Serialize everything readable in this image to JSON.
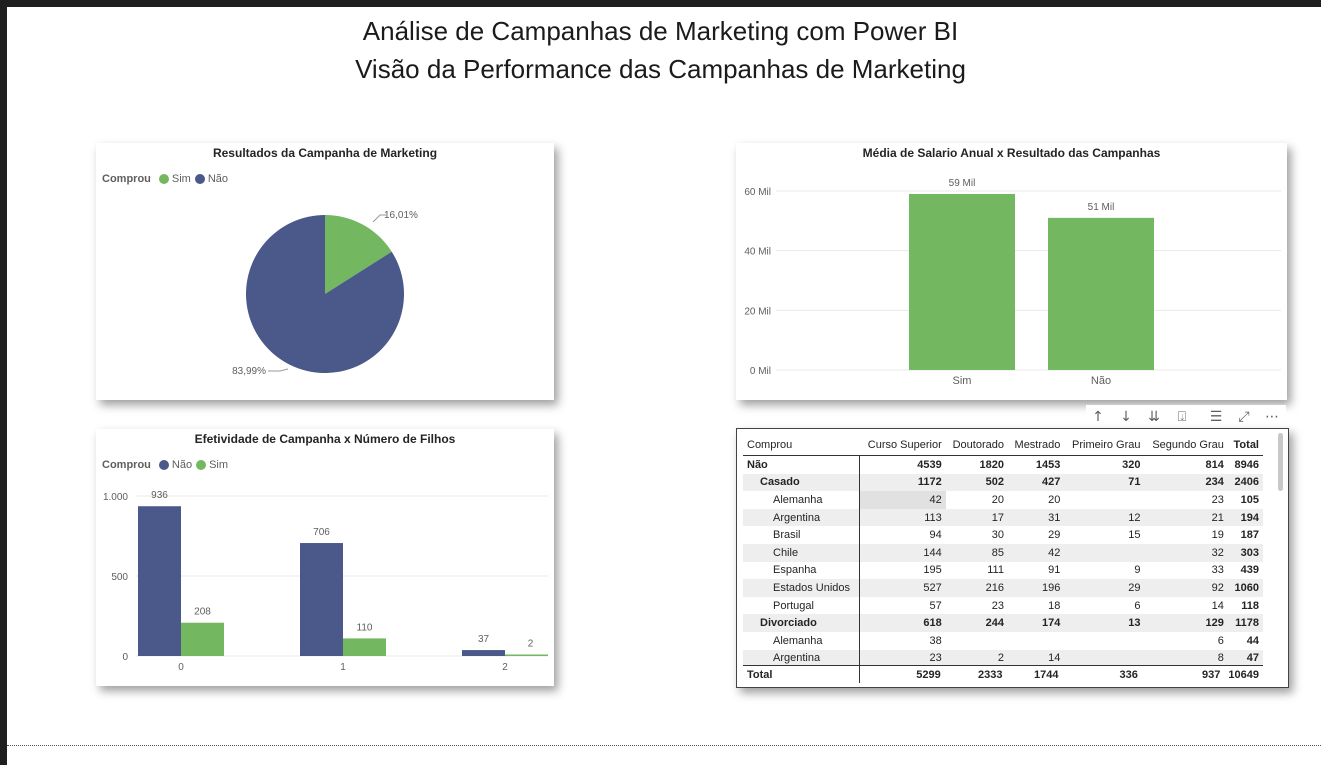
{
  "page": {
    "title_line1": "Análise de Campanhas de Marketing com Power BI",
    "title_line2": "Visão da Performance das Campanhas de Marketing"
  },
  "colors": {
    "sim": "#73b761",
    "nao": "#4a588a"
  },
  "pie": {
    "title": "Resultados da Campanha de Marketing",
    "legend_title": "Comprou",
    "legend": [
      "Sim",
      "Não"
    ],
    "labels": [
      "16,01%",
      "83,99%"
    ]
  },
  "bar_salary": {
    "title": "Média de Salario Anual x Resultado das Campanhas",
    "ticks": [
      "0 Mil",
      "20 Mil",
      "40 Mil",
      "60 Mil"
    ],
    "data_labels": [
      "59 Mil",
      "51 Mil"
    ]
  },
  "bar_children": {
    "title": "Efetividade de Campanha x Número de Filhos",
    "legend_title": "Comprou",
    "legend": [
      "Não",
      "Sim"
    ],
    "ticks": [
      "0",
      "500",
      "1.000"
    ],
    "data_labels": [
      "936",
      "208",
      "706",
      "110",
      "37",
      "2"
    ]
  },
  "chart_data": [
    {
      "type": "pie",
      "title": "Resultados da Campanha de Marketing",
      "legend_title": "Comprou",
      "categories": [
        "Sim",
        "Não"
      ],
      "values": [
        16.01,
        83.99
      ],
      "unit": "%",
      "legend_position": "top-left"
    },
    {
      "type": "bar",
      "title": "Média de Salario Anual x Resultado das Campanhas",
      "categories": [
        "Sim",
        "Não"
      ],
      "values": [
        59,
        51
      ],
      "unit": "Mil",
      "ylim": [
        0,
        60
      ],
      "grid": true
    },
    {
      "type": "bar",
      "title": "Efetividade de Campanha x Número de Filhos",
      "legend_title": "Comprou",
      "categories": [
        "0",
        "1",
        "2"
      ],
      "series": [
        {
          "name": "Não",
          "values": [
            936,
            706,
            37
          ]
        },
        {
          "name": "Sim",
          "values": [
            208,
            110,
            2
          ]
        }
      ],
      "ylim": [
        0,
        1000
      ],
      "grid": true,
      "legend_position": "top-left"
    },
    {
      "type": "table",
      "columns": [
        "Comprou",
        "Curso Superior",
        "Doutorado",
        "Mestrado",
        "Primeiro Grau",
        "Segundo Grau",
        "Total"
      ],
      "rows": [
        {
          "level": 0,
          "cells": [
            "Não",
            "4539",
            "1820",
            "1453",
            "320",
            "814",
            "8946"
          ]
        },
        {
          "level": 1,
          "cells": [
            "Casado",
            "1172",
            "502",
            "427",
            "71",
            "234",
            "2406"
          ]
        },
        {
          "level": 2,
          "cells": [
            "Alemanha",
            "42",
            "20",
            "20",
            "",
            "23",
            "105"
          ]
        },
        {
          "level": 2,
          "cells": [
            "Argentina",
            "113",
            "17",
            "31",
            "12",
            "21",
            "194"
          ]
        },
        {
          "level": 2,
          "cells": [
            "Brasil",
            "94",
            "30",
            "29",
            "15",
            "19",
            "187"
          ]
        },
        {
          "level": 2,
          "cells": [
            "Chile",
            "144",
            "85",
            "42",
            "",
            "32",
            "303"
          ]
        },
        {
          "level": 2,
          "cells": [
            "Espanha",
            "195",
            "111",
            "91",
            "9",
            "33",
            "439"
          ]
        },
        {
          "level": 2,
          "cells": [
            "Estados Unidos",
            "527",
            "216",
            "196",
            "29",
            "92",
            "1060"
          ]
        },
        {
          "level": 2,
          "cells": [
            "Portugal",
            "57",
            "23",
            "18",
            "6",
            "14",
            "118"
          ]
        },
        {
          "level": 1,
          "cells": [
            "Divorciado",
            "618",
            "244",
            "174",
            "13",
            "129",
            "1178"
          ]
        },
        {
          "level": 2,
          "cells": [
            "Alemanha",
            "38",
            "",
            "",
            "",
            "6",
            "44"
          ]
        },
        {
          "level": 2,
          "cells": [
            "Argentina",
            "23",
            "2",
            "14",
            "",
            "8",
            "47"
          ]
        }
      ],
      "total": [
        "Total",
        "5299",
        "2333",
        "1744",
        "336",
        "937",
        "10649"
      ]
    }
  ]
}
